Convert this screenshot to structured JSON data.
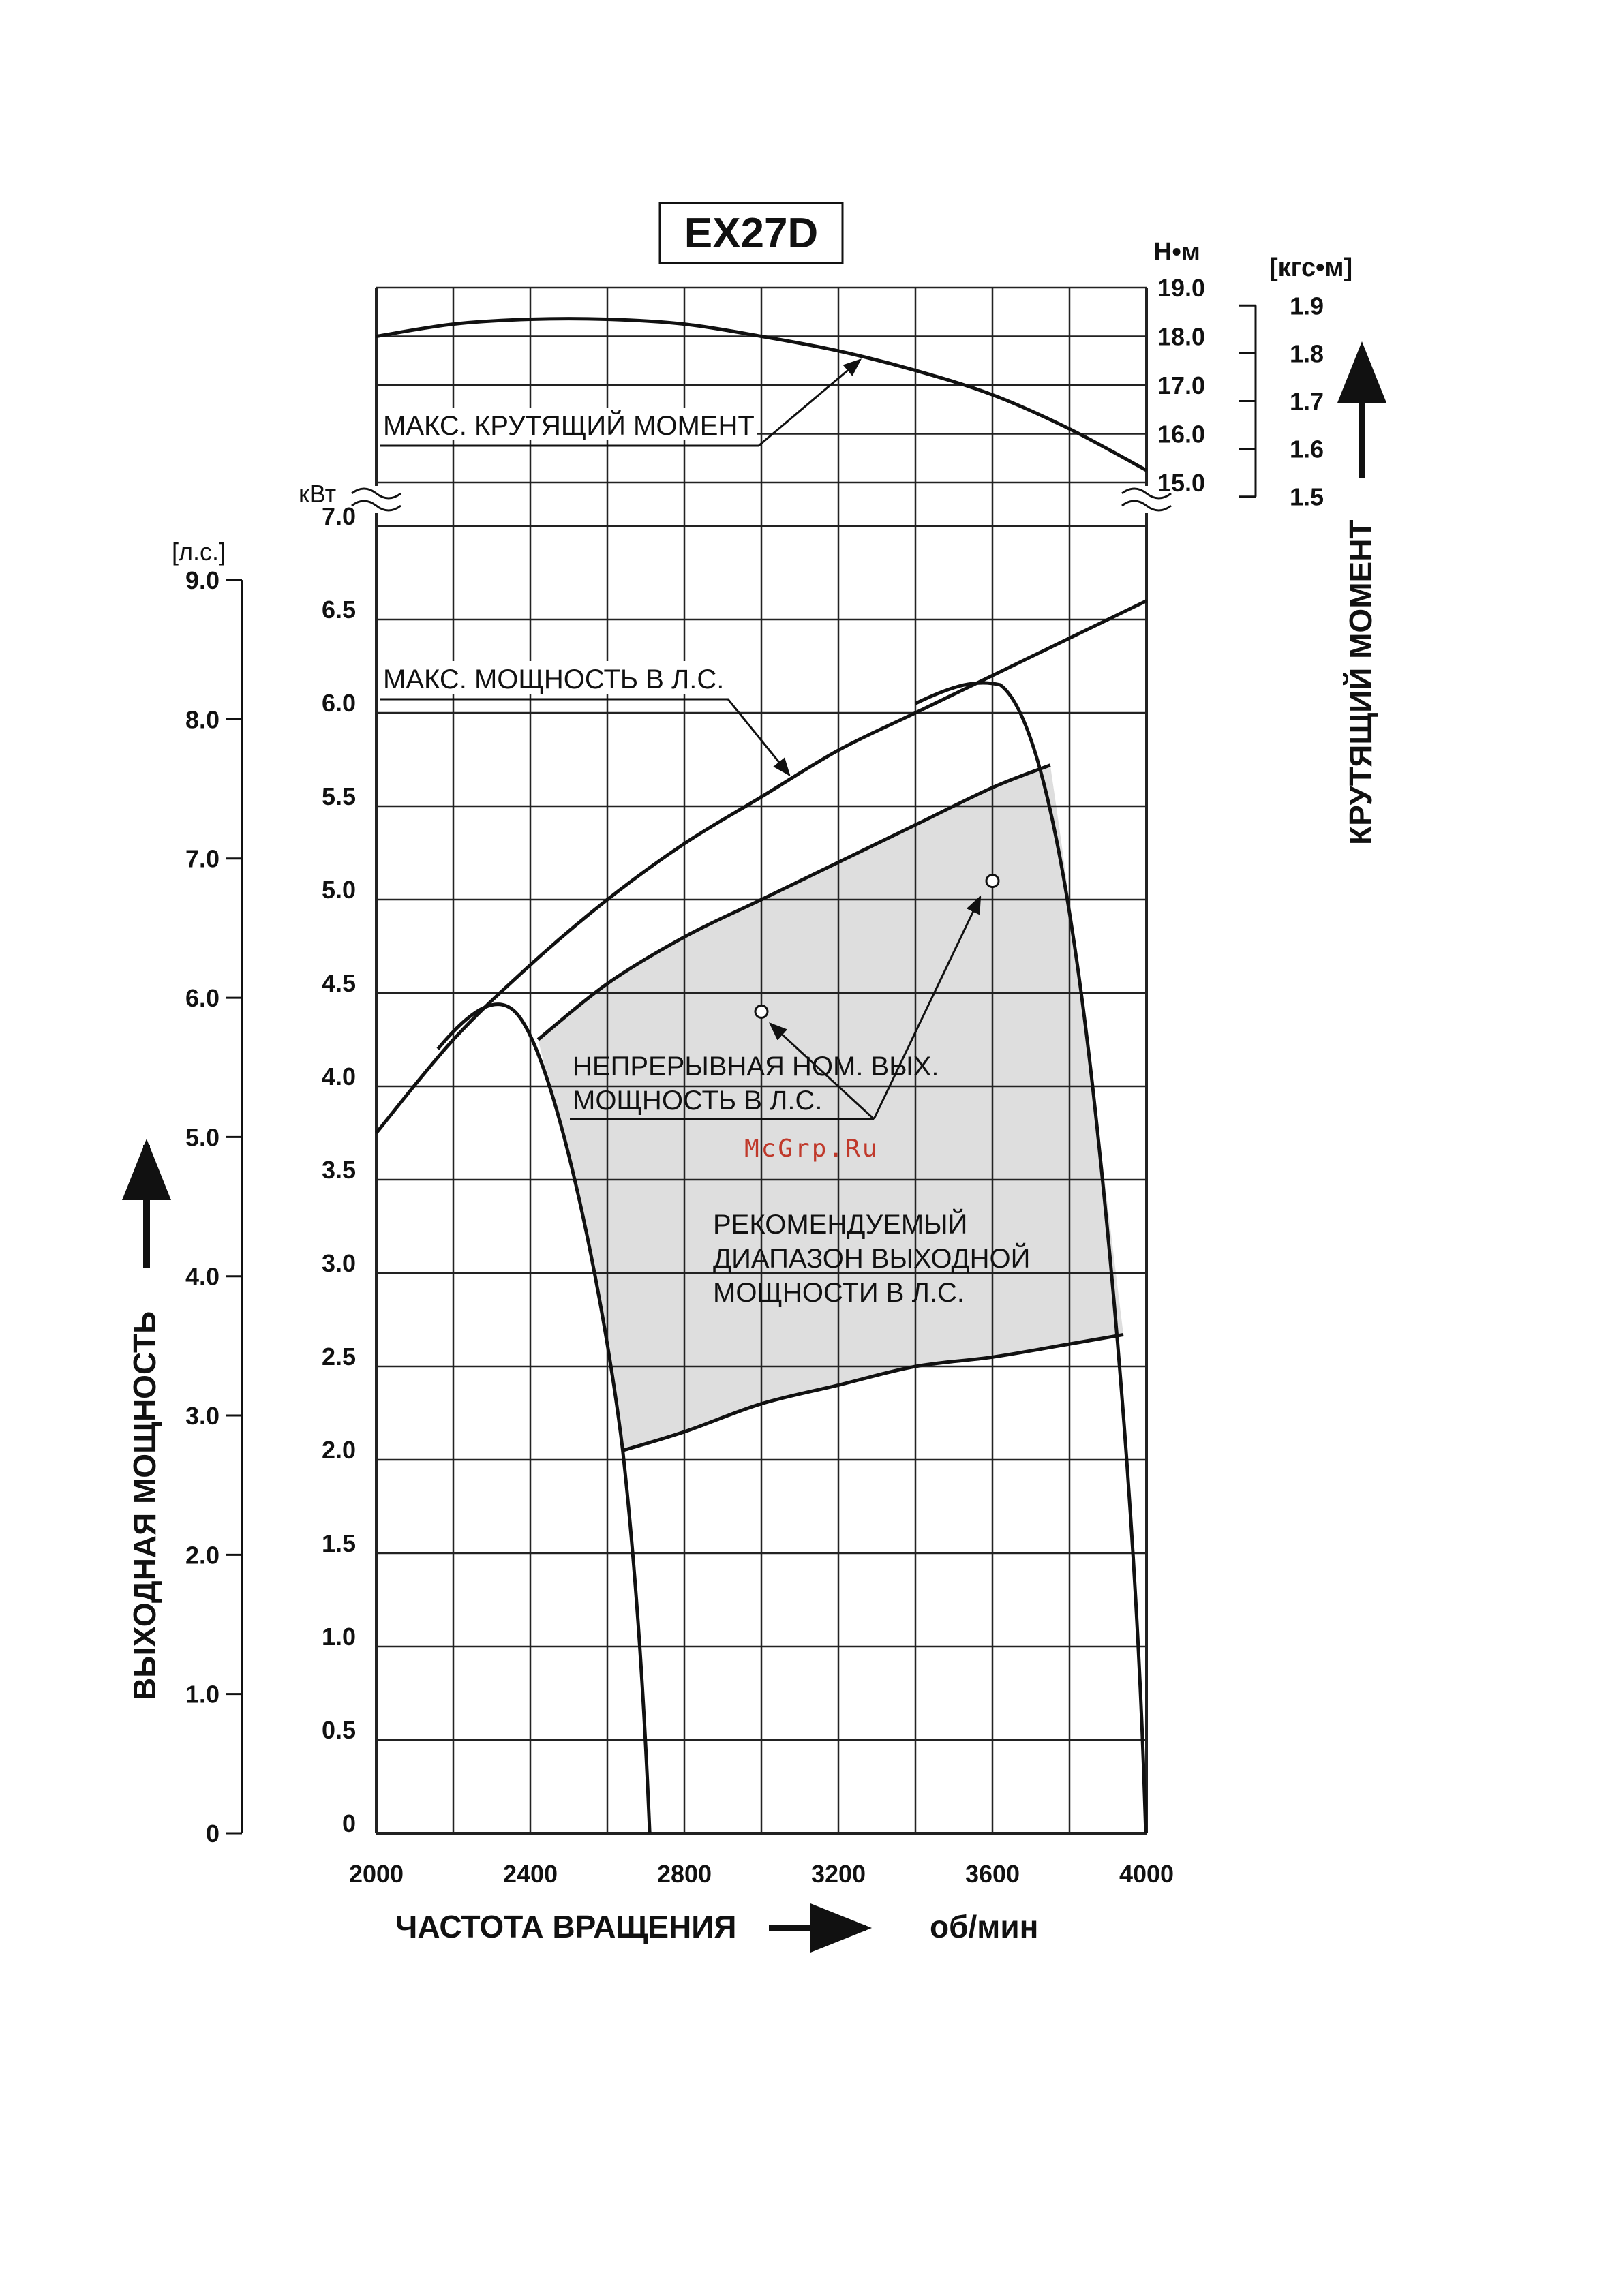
{
  "chart_data": {
    "type": "line",
    "title": "EX27D",
    "watermark": "McGrp.Ru",
    "xlabel": "ЧАСТОТА ВРАЩЕНИЯ",
    "xunit": "об/мин",
    "xlim": [
      2000,
      4000
    ],
    "x_ticks": [
      "2000",
      "2400",
      "2800",
      "3200",
      "3600",
      "4000"
    ],
    "y_label": "ВЫХОДНАЯ МОЩНОСТЬ",
    "y_kw_unit": "кВт",
    "y_kw_lim": [
      0,
      7.0
    ],
    "y_kw_ticks": [
      "0",
      "0.5",
      "1.0",
      "1.5",
      "2.0",
      "2.5",
      "3.0",
      "3.5",
      "4.0",
      "4.5",
      "5.0",
      "5.5",
      "6.0",
      "6.5",
      "7.0"
    ],
    "y_hp_unit": "[л.с.]",
    "y_hp_ticks": [
      "0",
      "1.0",
      "2.0",
      "3.0",
      "4.0",
      "5.0",
      "6.0",
      "7.0",
      "8.0",
      "9.0"
    ],
    "torque_label": "КРУТЯЩИЙ МОМЕНТ",
    "torque_nm_unit": "Н•м",
    "torque_nm_lim": [
      15.0,
      19.0
    ],
    "torque_nm_ticks": [
      "15.0",
      "16.0",
      "17.0",
      "18.0",
      "19.0"
    ],
    "torque_kgf_unit": "[кгс•м]",
    "torque_kgf_ticks": [
      "1.5",
      "1.6",
      "1.7",
      "1.8",
      "1.9"
    ],
    "grid": true,
    "annotations": {
      "max_torque": "МАКС. КРУТЯЩИЙ МОМЕНТ",
      "max_power": "МАКС. МОЩНОСТЬ В Л.С.",
      "continuous_line1": "НЕПРЕРЫВНАЯ НОМ. ВЫХ.",
      "continuous_line2": "МОЩНОСТЬ В Л.С.",
      "range_line1": "РЕКОМЕНДУЕМЫЙ",
      "range_line2": "ДИАПАЗОН ВЫХОДНОЙ",
      "range_line3": "МОЩНОСТИ В Л.С."
    },
    "series": [
      {
        "axis": "torque_nm",
        "x": [
          2000,
          2200,
          2400,
          2600,
          2800,
          3000,
          3200,
          3400,
          3600,
          3800,
          4000
        ],
        "values": [
          18.0,
          18.25,
          18.35,
          18.35,
          18.25,
          18.0,
          17.7,
          17.3,
          16.8,
          16.1,
          15.25
        ]
      },
      {
        "axis": "power_kw",
        "x": [
          2000,
          2200,
          2400,
          2600,
          2800,
          3000,
          3200,
          3400,
          3600,
          3800,
          4000
        ],
        "values": [
          3.75,
          4.25,
          4.65,
          5.0,
          5.3,
          5.55,
          5.8,
          6.0,
          6.2,
          6.4,
          6.6
        ]
      },
      {
        "axis": "power_kw",
        "x": [
          2420,
          2600,
          2800,
          3000,
          3200,
          3400,
          3600,
          3750
        ],
        "values": [
          4.25,
          4.55,
          4.8,
          5.0,
          5.2,
          5.4,
          5.6,
          5.72
        ]
      },
      {
        "axis": "power_kw",
        "x": [
          2640,
          2800,
          3000,
          3200,
          3400,
          3600,
          3800,
          3940
        ],
        "values": [
          2.05,
          2.15,
          2.3,
          2.4,
          2.5,
          2.55,
          2.62,
          2.67
        ]
      }
    ],
    "markers": [
      {
        "x": 3000,
        "y": 4.4
      },
      {
        "x": 3600,
        "y": 5.1
      }
    ]
  }
}
